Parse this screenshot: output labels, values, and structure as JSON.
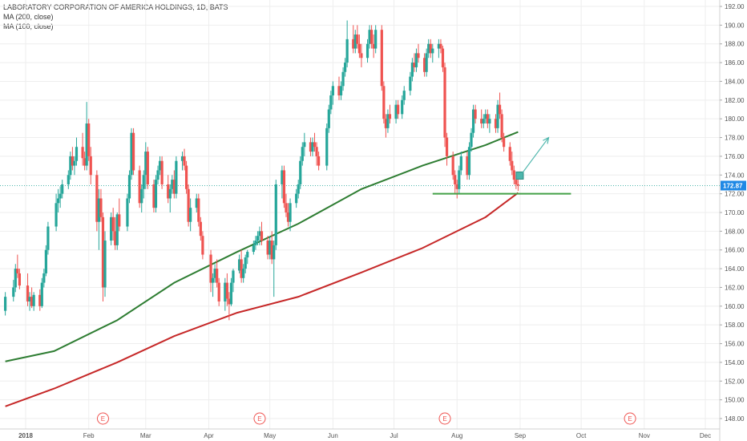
{
  "legend": {
    "title": "LABORATORY CORPORATION OF AMERICA HOLDINGS, 1D, BATS",
    "ma1": "MA (200, close)",
    "ma2": "MA (100, close)"
  },
  "price_badge": "172.87",
  "colors": {
    "up": "#26a69a",
    "down": "#ef5350",
    "ma200": "#c62828",
    "ma100": "#2e7d32",
    "support": "#43a047",
    "arrow": "#4db6ac",
    "grid": "#eeeeee",
    "badge": "#1e88e5",
    "earnings": "#ef5350"
  },
  "chart_data": {
    "type": "candlestick",
    "title": "LABORATORY CORPORATION OF AMERICA HOLDINGS, 1D, BATS",
    "ylim": [
      147.0,
      192.6
    ],
    "y_ticks": [
      "148.00",
      "150.00",
      "152.00",
      "154.00",
      "156.00",
      "158.00",
      "160.00",
      "162.00",
      "164.00",
      "166.00",
      "168.00",
      "170.00",
      "172.00",
      "174.00",
      "176.00",
      "178.00",
      "180.00",
      "182.00",
      "184.00",
      "186.00",
      "188.00",
      "190.00",
      "192.00"
    ],
    "x_ticks": [
      "2018",
      "Feb",
      "Mar",
      "Apr",
      "May",
      "Jun",
      "Jul",
      "Aug",
      "Sep",
      "Oct",
      "Nov",
      "Dec"
    ],
    "x_tick_dates": [
      "2018-01-01",
      "2018-02-01",
      "2018-03-01",
      "2018-04-01",
      "2018-05-01",
      "2018-06-01",
      "2018-07-01",
      "2018-08-01",
      "2018-09-01",
      "2018-10-01",
      "2018-11-01",
      "2018-12-01"
    ],
    "last_price": 172.87,
    "earnings_dates": [
      "2018-02-08",
      "2018-04-26",
      "2018-07-26",
      "2018-10-25"
    ],
    "earnings_label": "E",
    "ohlc": [
      [
        "2017-12-22",
        159.5,
        161.5,
        159.0,
        161.0
      ],
      [
        "2017-12-26",
        161.0,
        162.8,
        160.5,
        162.0
      ],
      [
        "2017-12-27",
        162.0,
        164.5,
        161.5,
        164.0
      ],
      [
        "2017-12-28",
        164.0,
        165.5,
        163.0,
        163.5
      ],
      [
        "2017-12-29",
        163.5,
        164.0,
        161.8,
        162.2
      ],
      [
        "2018-01-02",
        162.2,
        163.5,
        160.0,
        160.5
      ],
      [
        "2018-01-03",
        160.5,
        161.5,
        159.5,
        161.0
      ],
      [
        "2018-01-04",
        161.0,
        162.0,
        159.8,
        160.0
      ],
      [
        "2018-01-05",
        160.0,
        161.5,
        159.5,
        161.2
      ],
      [
        "2018-01-08",
        161.2,
        161.8,
        159.5,
        160.0
      ],
      [
        "2018-01-09",
        160.0,
        163.0,
        159.8,
        162.5
      ],
      [
        "2018-01-10",
        162.5,
        164.0,
        162.0,
        163.5
      ],
      [
        "2018-01-11",
        163.5,
        166.5,
        163.2,
        166.0
      ],
      [
        "2018-01-12",
        166.0,
        169.0,
        165.5,
        168.5
      ],
      [
        "2018-01-16",
        168.5,
        172.0,
        168.0,
        171.0
      ],
      [
        "2018-01-17",
        171.0,
        172.5,
        170.0,
        171.5
      ],
      [
        "2018-01-18",
        171.5,
        172.8,
        170.5,
        172.0
      ],
      [
        "2018-01-19",
        172.0,
        173.5,
        171.5,
        173.0
      ],
      [
        "2018-01-22",
        173.0,
        174.5,
        172.5,
        174.0
      ],
      [
        "2018-01-23",
        174.0,
        176.5,
        173.5,
        176.0
      ],
      [
        "2018-01-24",
        176.0,
        177.0,
        174.5,
        175.0
      ],
      [
        "2018-01-25",
        175.0,
        176.0,
        174.0,
        175.5
      ],
      [
        "2018-01-26",
        175.5,
        178.0,
        175.0,
        177.0
      ],
      [
        "2018-01-29",
        177.0,
        178.5,
        175.0,
        175.8
      ],
      [
        "2018-01-30",
        175.8,
        176.5,
        174.5,
        175.0
      ],
      [
        "2018-01-31",
        175.0,
        181.8,
        174.5,
        179.5
      ],
      [
        "2018-02-01",
        179.5,
        180.0,
        175.5,
        176.0
      ],
      [
        "2018-02-02",
        176.0,
        177.0,
        173.0,
        174.0
      ],
      [
        "2018-02-05",
        174.0,
        174.5,
        168.0,
        169.0
      ],
      [
        "2018-02-06",
        169.0,
        172.5,
        166.0,
        171.5
      ],
      [
        "2018-02-07",
        171.5,
        172.5,
        169.0,
        169.5
      ],
      [
        "2018-02-08",
        169.5,
        170.0,
        160.5,
        162.0
      ],
      [
        "2018-02-09",
        162.0,
        168.0,
        161.0,
        167.0
      ],
      [
        "2018-02-12",
        167.0,
        170.0,
        166.5,
        169.5
      ],
      [
        "2018-02-13",
        169.5,
        170.5,
        167.0,
        168.0
      ],
      [
        "2018-02-14",
        168.0,
        169.5,
        166.0,
        166.5
      ],
      [
        "2018-02-15",
        166.5,
        170.0,
        166.0,
        169.8
      ],
      [
        "2018-02-16",
        169.8,
        171.5,
        168.0,
        168.5
      ],
      [
        "2018-02-20",
        168.5,
        172.0,
        168.0,
        171.5
      ],
      [
        "2018-02-21",
        171.5,
        174.5,
        171.0,
        174.0
      ],
      [
        "2018-02-22",
        174.0,
        179.0,
        173.5,
        178.5
      ],
      [
        "2018-02-23",
        178.5,
        179.0,
        174.0,
        174.5
      ],
      [
        "2018-02-26",
        174.5,
        175.0,
        170.5,
        171.0
      ],
      [
        "2018-02-27",
        171.0,
        173.0,
        170.0,
        172.5
      ],
      [
        "2018-02-28",
        172.5,
        174.5,
        171.5,
        174.0
      ],
      [
        "2018-03-01",
        174.0,
        177.5,
        172.5,
        176.5
      ],
      [
        "2018-03-02",
        176.5,
        177.0,
        172.5,
        173.0
      ],
      [
        "2018-03-05",
        173.0,
        173.5,
        170.0,
        170.5
      ],
      [
        "2018-03-06",
        170.5,
        174.0,
        170.0,
        173.5
      ],
      [
        "2018-03-07",
        173.5,
        175.0,
        173.0,
        174.5
      ],
      [
        "2018-03-08",
        174.5,
        176.0,
        174.0,
        175.5
      ],
      [
        "2018-03-09",
        175.5,
        176.0,
        172.5,
        173.0
      ],
      [
        "2018-03-12",
        173.0,
        174.0,
        171.0,
        171.5
      ],
      [
        "2018-03-13",
        171.5,
        173.0,
        170.0,
        172.5
      ],
      [
        "2018-03-14",
        172.5,
        174.0,
        172.0,
        173.5
      ],
      [
        "2018-03-15",
        173.5,
        174.5,
        171.5,
        172.0
      ],
      [
        "2018-03-16",
        172.0,
        176.0,
        171.5,
        175.5
      ],
      [
        "2018-03-19",
        175.5,
        176.5,
        174.5,
        176.0
      ],
      [
        "2018-03-20",
        176.0,
        176.8,
        174.5,
        175.0
      ],
      [
        "2018-03-21",
        175.0,
        175.5,
        172.0,
        172.5
      ],
      [
        "2018-03-22",
        172.5,
        173.0,
        168.5,
        169.0
      ],
      [
        "2018-03-23",
        169.0,
        171.5,
        168.0,
        170.5
      ],
      [
        "2018-03-26",
        170.5,
        172.0,
        170.0,
        171.5
      ],
      [
        "2018-03-27",
        171.5,
        172.0,
        168.5,
        169.0
      ],
      [
        "2018-03-28",
        169.0,
        169.5,
        167.0,
        167.5
      ],
      [
        "2018-03-29",
        167.5,
        168.0,
        165.0,
        165.5
      ],
      [
        "2018-04-02",
        165.5,
        166.0,
        161.5,
        162.5
      ],
      [
        "2018-04-03",
        162.5,
        163.5,
        161.0,
        163.0
      ],
      [
        "2018-04-04",
        163.0,
        164.5,
        162.5,
        164.0
      ],
      [
        "2018-04-05",
        164.0,
        165.0,
        162.0,
        162.5
      ],
      [
        "2018-04-06",
        162.5,
        163.0,
        160.0,
        160.5
      ],
      [
        "2018-04-09",
        160.5,
        163.0,
        159.5,
        162.5
      ],
      [
        "2018-04-10",
        162.5,
        163.5,
        160.0,
        160.8
      ],
      [
        "2018-04-11",
        160.8,
        161.5,
        158.5,
        160.2
      ],
      [
        "2018-04-12",
        160.2,
        163.0,
        160.0,
        162.5
      ],
      [
        "2018-04-13",
        162.5,
        164.0,
        161.5,
        163.8
      ],
      [
        "2018-04-16",
        163.8,
        165.5,
        163.5,
        165.0
      ],
      [
        "2018-04-17",
        165.0,
        166.0,
        162.5,
        163.0
      ],
      [
        "2018-04-18",
        163.0,
        164.5,
        162.5,
        164.0
      ],
      [
        "2018-04-19",
        164.0,
        165.5,
        163.5,
        165.2
      ],
      [
        "2018-04-20",
        165.2,
        166.0,
        164.5,
        165.8
      ],
      [
        "2018-04-23",
        165.8,
        167.0,
        165.5,
        166.5
      ],
      [
        "2018-04-24",
        166.5,
        167.5,
        166.0,
        167.0
      ],
      [
        "2018-04-25",
        167.0,
        168.0,
        166.5,
        167.5
      ],
      [
        "2018-04-26",
        167.5,
        168.5,
        166.5,
        168.0
      ],
      [
        "2018-04-27",
        168.0,
        169.0,
        166.5,
        167.0
      ],
      [
        "2018-04-30",
        167.0,
        167.5,
        165.0,
        165.5
      ],
      [
        "2018-05-01",
        165.5,
        167.5,
        165.0,
        167.0
      ],
      [
        "2018-05-02",
        167.0,
        168.0,
        164.5,
        165.0
      ],
      [
        "2018-05-03",
        165.0,
        167.0,
        161.0,
        166.5
      ],
      [
        "2018-05-04",
        166.5,
        173.5,
        166.0,
        173.0
      ],
      [
        "2018-05-07",
        173.0,
        175.0,
        171.5,
        174.5
      ],
      [
        "2018-05-08",
        174.5,
        175.0,
        170.5,
        171.0
      ],
      [
        "2018-05-09",
        171.0,
        172.0,
        169.5,
        170.0
      ],
      [
        "2018-05-10",
        170.0,
        171.0,
        168.5,
        169.0
      ],
      [
        "2018-05-11",
        169.0,
        171.5,
        168.0,
        171.0
      ],
      [
        "2018-05-14",
        171.0,
        172.5,
        170.5,
        172.0
      ],
      [
        "2018-05-15",
        172.0,
        173.5,
        171.5,
        173.0
      ],
      [
        "2018-05-16",
        173.0,
        176.0,
        172.5,
        175.5
      ],
      [
        "2018-05-17",
        175.5,
        177.5,
        175.0,
        177.0
      ],
      [
        "2018-05-18",
        177.0,
        178.5,
        176.0,
        177.5
      ],
      [
        "2018-05-21",
        177.5,
        178.0,
        176.0,
        176.5
      ],
      [
        "2018-05-22",
        176.5,
        178.0,
        176.0,
        177.5
      ],
      [
        "2018-05-23",
        177.5,
        178.5,
        176.5,
        177.0
      ],
      [
        "2018-05-24",
        177.0,
        177.5,
        175.0,
        176.0
      ],
      [
        "2018-05-25",
        176.0,
        176.5,
        174.5,
        175.0
      ],
      [
        "2018-05-29",
        175.0,
        179.5,
        174.5,
        179.0
      ],
      [
        "2018-05-30",
        179.0,
        181.5,
        178.5,
        181.0
      ],
      [
        "2018-05-31",
        181.0,
        183.0,
        180.5,
        182.5
      ],
      [
        "2018-06-01",
        182.5,
        184.0,
        181.5,
        183.5
      ],
      [
        "2018-06-04",
        183.5,
        184.5,
        182.0,
        182.5
      ],
      [
        "2018-06-05",
        182.5,
        184.0,
        182.0,
        183.5
      ],
      [
        "2018-06-06",
        183.5,
        185.5,
        183.0,
        185.0
      ],
      [
        "2018-06-07",
        185.0,
        186.5,
        184.5,
        186.0
      ],
      [
        "2018-06-08",
        186.0,
        190.5,
        185.5,
        188.5
      ],
      [
        "2018-06-11",
        188.5,
        190.0,
        187.0,
        187.5
      ],
      [
        "2018-06-12",
        187.5,
        189.5,
        187.0,
        189.0
      ],
      [
        "2018-06-13",
        189.0,
        190.0,
        187.5,
        188.0
      ],
      [
        "2018-06-14",
        188.0,
        189.0,
        186.5,
        187.0
      ],
      [
        "2018-06-15",
        187.0,
        188.0,
        185.5,
        186.5
      ],
      [
        "2018-06-18",
        186.5,
        188.5,
        186.0,
        188.0
      ],
      [
        "2018-06-19",
        188.0,
        190.0,
        187.5,
        189.5
      ],
      [
        "2018-06-20",
        189.5,
        190.0,
        187.5,
        188.0
      ],
      [
        "2018-06-21",
        188.0,
        189.0,
        186.5,
        187.5
      ],
      [
        "2018-06-22",
        187.5,
        190.0,
        187.0,
        189.5
      ],
      [
        "2018-06-25",
        189.5,
        190.0,
        183.0,
        183.5
      ],
      [
        "2018-06-26",
        183.5,
        184.0,
        179.5,
        180.0
      ],
      [
        "2018-06-27",
        180.0,
        180.5,
        178.0,
        179.0
      ],
      [
        "2018-06-28",
        179.0,
        181.0,
        178.5,
        180.5
      ],
      [
        "2018-06-29",
        180.5,
        181.5,
        179.5,
        180.0
      ],
      [
        "2018-07-02",
        180.0,
        182.0,
        179.5,
        181.5
      ],
      [
        "2018-07-03",
        181.5,
        182.0,
        180.0,
        180.5
      ],
      [
        "2018-07-05",
        180.5,
        182.5,
        180.0,
        182.0
      ],
      [
        "2018-07-06",
        182.0,
        183.5,
        181.5,
        183.0
      ],
      [
        "2018-07-09",
        183.0,
        185.0,
        182.5,
        184.5
      ],
      [
        "2018-07-10",
        184.5,
        186.5,
        184.0,
        186.0
      ],
      [
        "2018-07-11",
        186.0,
        187.0,
        185.0,
        185.5
      ],
      [
        "2018-07-12",
        185.5,
        187.5,
        185.0,
        187.0
      ],
      [
        "2018-07-13",
        187.0,
        188.0,
        186.0,
        186.5
      ],
      [
        "2018-07-16",
        186.5,
        187.0,
        184.5,
        185.0
      ],
      [
        "2018-07-17",
        185.0,
        187.5,
        184.5,
        187.0
      ],
      [
        "2018-07-18",
        187.0,
        188.5,
        186.5,
        188.0
      ],
      [
        "2018-07-19",
        188.0,
        188.5,
        186.5,
        187.0
      ],
      [
        "2018-07-20",
        187.0,
        188.0,
        186.0,
        187.5
      ],
      [
        "2018-07-23",
        187.5,
        188.5,
        186.5,
        188.0
      ],
      [
        "2018-07-24",
        188.0,
        188.5,
        187.0,
        187.5
      ],
      [
        "2018-07-25",
        187.5,
        187.8,
        185.0,
        185.5
      ],
      [
        "2018-07-26",
        185.5,
        186.0,
        177.0,
        178.0
      ],
      [
        "2018-07-27",
        178.0,
        178.5,
        175.0,
        176.0
      ],
      [
        "2018-07-30",
        176.0,
        176.5,
        173.5,
        174.0
      ],
      [
        "2018-07-31",
        174.0,
        174.5,
        172.0,
        173.0
      ],
      [
        "2018-08-01",
        173.0,
        173.5,
        171.5,
        172.5
      ],
      [
        "2018-08-02",
        172.5,
        175.0,
        172.0,
        174.5
      ],
      [
        "2018-08-03",
        174.5,
        176.5,
        174.0,
        176.0
      ],
      [
        "2018-08-06",
        176.0,
        176.5,
        173.5,
        174.0
      ],
      [
        "2018-08-07",
        174.0,
        177.5,
        173.5,
        177.0
      ],
      [
        "2018-08-08",
        177.0,
        179.0,
        176.5,
        178.5
      ],
      [
        "2018-08-09",
        178.5,
        181.5,
        178.0,
        181.0
      ],
      [
        "2018-08-10",
        181.0,
        181.5,
        179.5,
        180.0
      ],
      [
        "2018-08-13",
        180.0,
        181.0,
        179.0,
        179.5
      ],
      [
        "2018-08-14",
        179.5,
        180.5,
        179.0,
        180.0
      ],
      [
        "2018-08-15",
        180.0,
        181.0,
        179.5,
        180.5
      ],
      [
        "2018-08-16",
        180.5,
        181.0,
        179.0,
        179.5
      ],
      [
        "2018-08-17",
        179.5,
        180.5,
        178.5,
        180.0
      ],
      [
        "2018-08-20",
        180.0,
        180.5,
        178.5,
        179.0
      ],
      [
        "2018-08-21",
        179.0,
        182.0,
        178.5,
        181.5
      ],
      [
        "2018-08-22",
        181.5,
        182.8,
        180.0,
        180.5
      ],
      [
        "2018-08-23",
        180.5,
        181.0,
        177.5,
        178.0
      ],
      [
        "2018-08-24",
        178.0,
        178.5,
        176.5,
        177.0
      ],
      [
        "2018-08-27",
        177.0,
        177.5,
        175.0,
        175.5
      ],
      [
        "2018-08-28",
        175.5,
        176.5,
        174.0,
        174.5
      ],
      [
        "2018-08-29",
        174.5,
        175.0,
        173.0,
        173.5
      ],
      [
        "2018-08-30",
        173.5,
        174.0,
        172.5,
        173.0
      ],
      [
        "2018-08-31",
        173.0,
        173.5,
        172.3,
        172.87
      ]
    ],
    "series": [
      {
        "name": "MA (200, close)",
        "x": [
          "2017-12-22",
          "2018-01-15",
          "2018-02-15",
          "2018-03-15",
          "2018-04-15",
          "2018-05-15",
          "2018-06-15",
          "2018-07-15",
          "2018-08-15",
          "2018-08-31"
        ],
        "values": [
          149.3,
          151.2,
          154.0,
          156.8,
          159.3,
          161.0,
          163.6,
          166.2,
          169.5,
          172.1
        ]
      },
      {
        "name": "MA (100, close)",
        "x": [
          "2017-12-22",
          "2018-01-15",
          "2018-02-15",
          "2018-03-15",
          "2018-04-15",
          "2018-05-15",
          "2018-06-15",
          "2018-07-15",
          "2018-08-15",
          "2018-08-31"
        ],
        "values": [
          154.1,
          155.2,
          158.5,
          162.5,
          165.8,
          168.8,
          172.5,
          175.0,
          177.2,
          178.6
        ]
      }
    ],
    "support_level": {
      "y": 172.0,
      "x_start": "2018-07-20",
      "x_end": "2018-09-26"
    },
    "projection_arrow": {
      "from": [
        "2018-09-01",
        173.9
      ],
      "to": [
        "2018-09-15",
        178.0
      ]
    }
  }
}
